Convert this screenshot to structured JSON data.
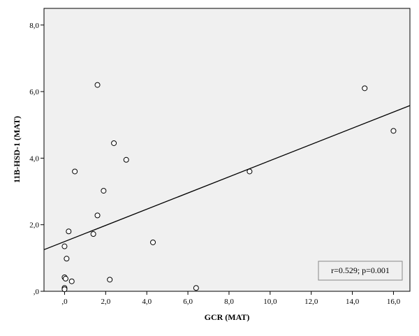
{
  "chart_data": {
    "type": "scatter",
    "title": "",
    "xlabel": "GCR (MAT)",
    "ylabel": "11B-HSD-1 (MAT)",
    "xlim": [
      -1.0,
      16.8
    ],
    "ylim": [
      0,
      8.5
    ],
    "x_ticks": [
      ",0",
      "2,0",
      "4,0",
      "6,0",
      "8,0",
      "10,0",
      "12,0",
      "14,0",
      "16,0"
    ],
    "y_ticks": [
      ",0",
      "2,0",
      "4,0",
      "6,0",
      "8,0"
    ],
    "grid": false,
    "legend": "none",
    "points": [
      {
        "x": 1.6,
        "y": 6.2
      },
      {
        "x": 14.6,
        "y": 6.1
      },
      {
        "x": 16.0,
        "y": 4.82
      },
      {
        "x": 2.4,
        "y": 4.45
      },
      {
        "x": 3.0,
        "y": 3.95
      },
      {
        "x": 0.5,
        "y": 3.6
      },
      {
        "x": 9.0,
        "y": 3.6
      },
      {
        "x": 1.9,
        "y": 3.02
      },
      {
        "x": 1.6,
        "y": 2.28
      },
      {
        "x": 0.2,
        "y": 1.8
      },
      {
        "x": 1.4,
        "y": 1.72
      },
      {
        "x": 4.3,
        "y": 1.47
      },
      {
        "x": 0.0,
        "y": 1.35
      },
      {
        "x": 0.1,
        "y": 0.98
      },
      {
        "x": 0.0,
        "y": 0.42
      },
      {
        "x": 0.05,
        "y": 0.38
      },
      {
        "x": 2.2,
        "y": 0.35
      },
      {
        "x": 0.35,
        "y": 0.3
      },
      {
        "x": 0.0,
        "y": 0.1
      },
      {
        "x": 0.0,
        "y": 0.06
      },
      {
        "x": 6.4,
        "y": 0.1
      }
    ],
    "fit_line": {
      "x0": -1.0,
      "y0": 1.25,
      "x1": 16.8,
      "y1": 5.58
    },
    "annotation": "r=0.529; p=0.001",
    "colors": {
      "plot_background": "#f0f0f0",
      "marker_fill": "#ffffff",
      "marker_stroke": "#000000",
      "line": "#000000"
    }
  }
}
